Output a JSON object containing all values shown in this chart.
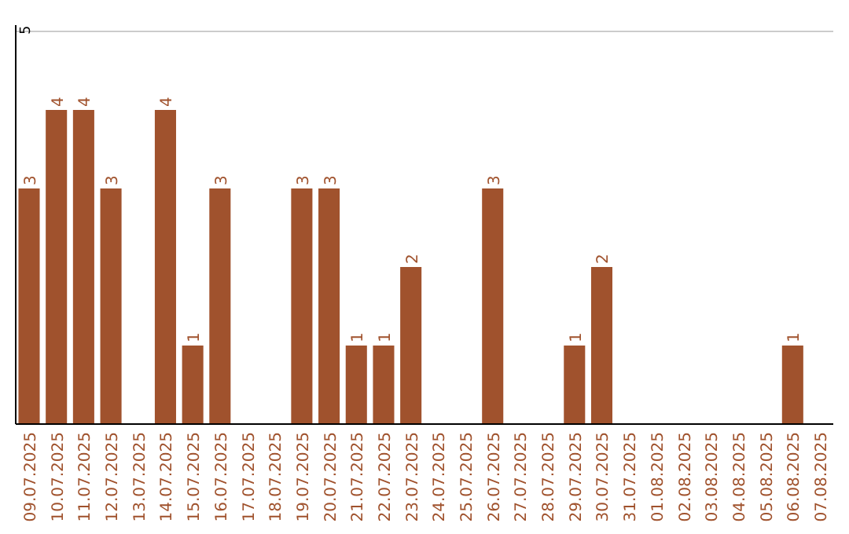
{
  "chart_data": {
    "type": "bar",
    "categories": [
      "09.07.2025",
      "10.07.2025",
      "11.07.2025",
      "12.07.2025",
      "13.07.2025",
      "14.07.2025",
      "15.07.2025",
      "16.07.2025",
      "17.07.2025",
      "18.07.2025",
      "19.07.2025",
      "20.07.2025",
      "21.07.2025",
      "22.07.2025",
      "23.07.2025",
      "24.07.2025",
      "25.07.2025",
      "26.07.2025",
      "27.07.2025",
      "28.07.2025",
      "29.07.2025",
      "30.07.2025",
      "31.07.2025",
      "01.08.2025",
      "02.08.2025",
      "03.08.2025",
      "04.08.2025",
      "05.08.2025",
      "06.08.2025",
      "07.08.2025"
    ],
    "values": [
      3,
      4,
      4,
      3,
      0,
      4,
      1,
      3,
      0,
      0,
      3,
      3,
      1,
      1,
      2,
      0,
      0,
      3,
      0,
      0,
      1,
      2,
      0,
      0,
      0,
      0,
      0,
      0,
      1,
      0
    ],
    "value_labels": [
      "3",
      "4",
      "4",
      "3",
      null,
      "4",
      "1",
      "3",
      null,
      null,
      "3",
      "3",
      "1",
      "1",
      "2",
      null,
      null,
      "3",
      null,
      null,
      "1",
      "2",
      null,
      null,
      null,
      null,
      null,
      null,
      "1",
      null
    ],
    "color": "#a0522d",
    "ylim": [
      0,
      5
    ],
    "yticks": [
      5
    ],
    "ref_lines": [
      {
        "axis": "y",
        "value": 5,
        "color": "#cccccc"
      }
    ]
  }
}
